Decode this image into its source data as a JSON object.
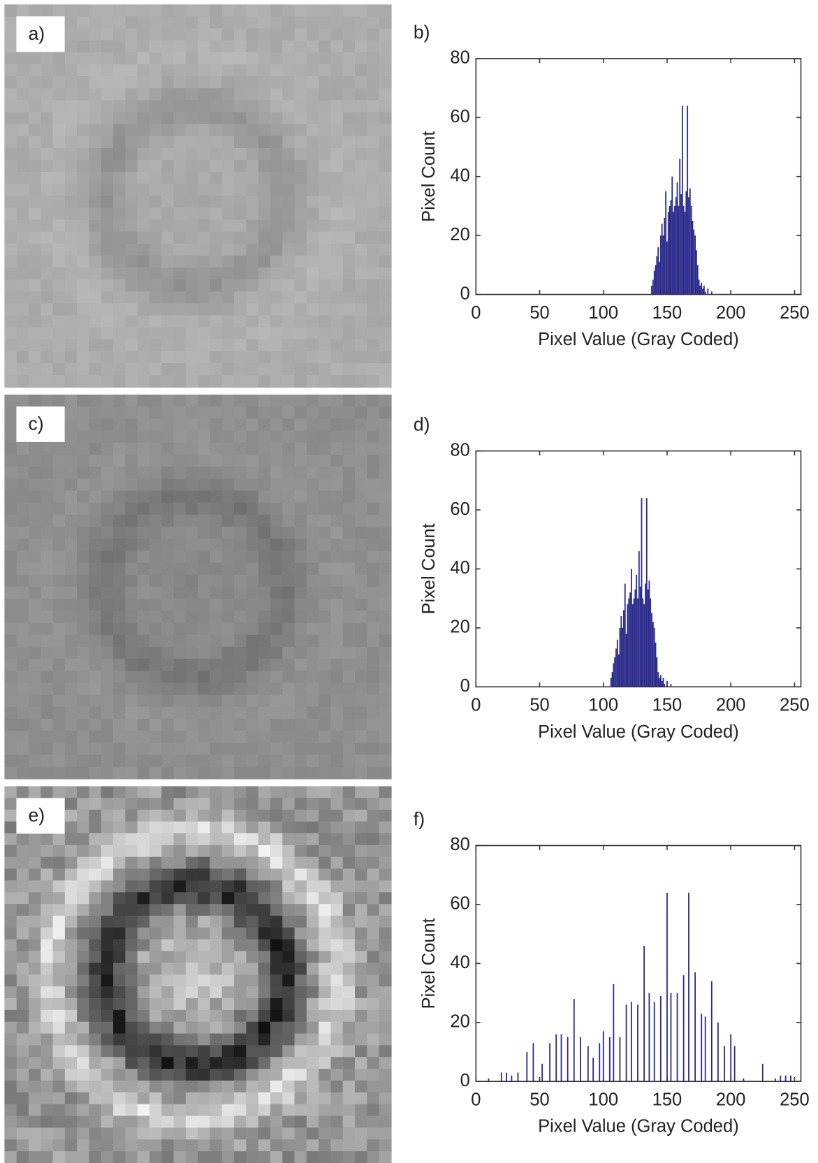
{
  "images": [
    {
      "label": "a)"
    },
    {
      "label": "c)"
    },
    {
      "label": "e)"
    }
  ],
  "chart_data": [
    {
      "type": "bar",
      "label": "b)",
      "x_label": "Pixel Value (Gray Coded)",
      "y_label": "Pixel Count",
      "color": "#2b2b8c",
      "x": [
        138,
        139,
        140,
        141,
        142,
        143,
        144,
        145,
        146,
        147,
        148,
        149,
        150,
        151,
        152,
        153,
        154,
        155,
        156,
        157,
        158,
        159,
        160,
        161,
        162,
        163,
        164,
        165,
        166,
        167,
        168,
        169,
        170,
        171,
        172,
        173,
        174,
        175,
        176,
        177,
        178,
        179,
        180,
        182,
        185
      ],
      "values": [
        3,
        5,
        8,
        10,
        13,
        16,
        11,
        20,
        24,
        20,
        26,
        35,
        18,
        28,
        30,
        32,
        40,
        28,
        30,
        33,
        38,
        30,
        46,
        34,
        64,
        30,
        28,
        35,
        64,
        33,
        36,
        30,
        25,
        22,
        20,
        15,
        10,
        5,
        3,
        4,
        2,
        3,
        1,
        2,
        1
      ],
      "xlim": [
        0,
        255
      ],
      "ylim": [
        0,
        80
      ],
      "xticks": [
        0,
        50,
        100,
        150,
        200,
        250
      ],
      "yticks": [
        0,
        20,
        40,
        60,
        80
      ]
    },
    {
      "type": "bar",
      "label": "d)",
      "x_label": "Pixel Value (Gray Coded)",
      "y_label": "Pixel Count",
      "color": "#2b2b8c",
      "x": [
        106,
        107,
        108,
        109,
        110,
        111,
        112,
        113,
        114,
        115,
        116,
        117,
        118,
        119,
        120,
        121,
        122,
        123,
        124,
        125,
        126,
        127,
        128,
        129,
        130,
        131,
        132,
        133,
        134,
        135,
        136,
        137,
        138,
        139,
        140,
        141,
        142,
        143,
        144,
        145,
        146,
        147,
        148,
        150,
        153
      ],
      "values": [
        3,
        5,
        8,
        10,
        13,
        16,
        11,
        20,
        24,
        20,
        26,
        35,
        18,
        28,
        30,
        32,
        40,
        28,
        30,
        33,
        38,
        30,
        46,
        34,
        64,
        30,
        28,
        35,
        64,
        33,
        36,
        30,
        25,
        22,
        20,
        15,
        10,
        5,
        3,
        4,
        2,
        3,
        1,
        2,
        1
      ],
      "xlim": [
        0,
        255
      ],
      "ylim": [
        0,
        80
      ],
      "xticks": [
        0,
        50,
        100,
        150,
        200,
        250
      ],
      "yticks": [
        0,
        20,
        40,
        60,
        80
      ]
    },
    {
      "type": "bar",
      "label": "f)",
      "x_label": "Pixel Value (Gray Coded)",
      "y_label": "Pixel Count",
      "color": "#2b2b8c",
      "x": [
        10,
        20,
        24,
        28,
        33,
        40,
        45,
        52,
        58,
        63,
        67,
        72,
        77,
        82,
        88,
        92,
        97,
        100,
        105,
        108,
        113,
        118,
        122,
        127,
        132,
        136,
        140,
        145,
        150,
        153,
        158,
        163,
        167,
        172,
        177,
        180,
        185,
        190,
        195,
        200,
        203,
        210,
        225,
        235,
        239,
        243,
        247
      ],
      "values": [
        1,
        3,
        3,
        2,
        3,
        10,
        13,
        6,
        13,
        16,
        16,
        15,
        28,
        15,
        12,
        8,
        13,
        17,
        15,
        33,
        15,
        26,
        27,
        26,
        46,
        30,
        27,
        29,
        64,
        30,
        30,
        36,
        64,
        37,
        23,
        22,
        34,
        20,
        12,
        16,
        12,
        1,
        6,
        1,
        2,
        2,
        2
      ],
      "xlim": [
        0,
        255
      ],
      "ylim": [
        0,
        80
      ],
      "xticks": [
        0,
        50,
        100,
        150,
        200,
        250
      ],
      "yticks": [
        0,
        20,
        40,
        60,
        80
      ]
    }
  ]
}
